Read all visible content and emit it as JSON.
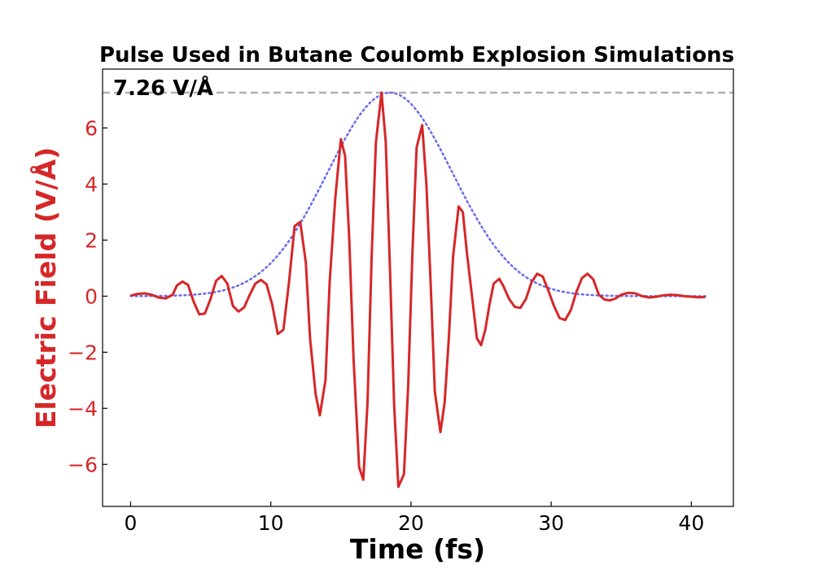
{
  "chart_data": {
    "type": "line",
    "title": "Pulse Used in Butane Coulomb Explosion Simulations",
    "xlabel": "Time (fs)",
    "ylabel": "Electric Field (V/Å)",
    "xlim": [
      -2,
      43
    ],
    "ylim": [
      -7.5,
      8.1
    ],
    "xticks": [
      0,
      10,
      20,
      30,
      40
    ],
    "xtick_labels": [
      "0",
      "10",
      "20",
      "30",
      "40"
    ],
    "yticks": [
      -6,
      -4,
      -2,
      0,
      2,
      4,
      6
    ],
    "ytick_labels": [
      "−6",
      "−4",
      "−2",
      "0",
      "2",
      "4",
      "6"
    ],
    "grid": false,
    "peak_value": 7.26,
    "peak_label": "7.26 V/Å",
    "colors": {
      "field": "#d62728",
      "ylabel": "#d62728",
      "envelope": "#6b6bf0",
      "peak_line": "#b0b0b0"
    },
    "series": [
      {
        "style": "solid",
        "x": [
          0,
          0.5,
          1,
          1.5,
          2,
          2.5,
          3,
          3.3,
          3.7,
          4.1,
          4.5,
          4.9,
          5.3,
          5.7,
          6.1,
          6.5,
          6.9,
          7.3,
          7.7,
          8.1,
          8.5,
          8.9,
          9.3,
          9.7,
          10.1,
          10.5,
          10.9,
          11.3,
          11.7,
          12.1,
          12.5,
          12.8,
          13.2,
          13.5,
          13.9,
          14.2,
          14.6,
          15,
          15.3,
          15.6,
          15.9,
          16.3,
          16.6,
          16.9,
          17.2,
          17.5,
          17.9,
          18.2,
          18.5,
          18.8,
          19.1,
          19.5,
          19.8,
          20.1,
          20.4,
          20.8,
          21.1,
          21.4,
          21.7,
          22.1,
          22.4,
          22.7,
          23,
          23.4,
          23.7,
          24,
          24.4,
          24.7,
          25,
          25.3,
          25.6,
          25.9,
          26.3,
          26.6,
          27,
          27.4,
          27.8,
          28.2,
          28.6,
          29,
          29.4,
          29.8,
          30.2,
          30.6,
          31,
          31.4,
          31.8,
          32.2,
          32.6,
          33,
          33.4,
          33.8,
          34.2,
          34.6,
          35,
          35.5,
          36,
          36.5,
          37,
          37.5,
          38,
          38.5,
          39,
          39.5,
          40,
          40.5,
          41
        ],
        "y": [
          0.02,
          0.08,
          0.1,
          0.05,
          -0.05,
          -0.08,
          0.05,
          0.38,
          0.52,
          0.4,
          -0.2,
          -0.65,
          -0.62,
          -0.1,
          0.55,
          0.72,
          0.45,
          -0.35,
          -0.55,
          -0.4,
          0.05,
          0.45,
          0.58,
          0.42,
          -0.3,
          -1.35,
          -1.2,
          0.5,
          2.5,
          2.65,
          1.2,
          -1.5,
          -3.5,
          -4.25,
          -3.0,
          0.5,
          3.5,
          5.6,
          5.0,
          2.0,
          -2.2,
          -6.1,
          -6.55,
          -3.8,
          1.5,
          5.5,
          7.26,
          5.5,
          1.0,
          -3.9,
          -6.8,
          -6.35,
          -3.2,
          1.5,
          5.3,
          6.1,
          4.0,
          0.5,
          -3.4,
          -4.85,
          -3.8,
          -1.5,
          1.4,
          3.2,
          3.0,
          1.5,
          -0.2,
          -1.5,
          -1.75,
          -1.2,
          -0.3,
          0.45,
          0.62,
          0.35,
          -0.1,
          -0.38,
          -0.42,
          -0.1,
          0.5,
          0.8,
          0.7,
          0.2,
          -0.35,
          -0.78,
          -0.85,
          -0.5,
          0.15,
          0.65,
          0.8,
          0.6,
          0.05,
          -0.12,
          -0.15,
          -0.08,
          0.05,
          0.12,
          0.1,
          0.0,
          -0.05,
          -0.02,
          0.03,
          0.05,
          0.04,
          0.0,
          -0.02,
          -0.04,
          -0.03
        ]
      },
      {
        "style": "dotted",
        "t0": 18.5,
        "fwhm": 10.5,
        "x_range": [
          0,
          41
        ]
      }
    ]
  }
}
